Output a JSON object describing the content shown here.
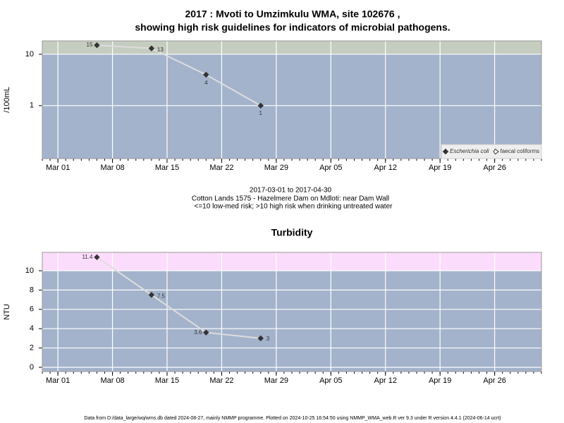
{
  "title": [
    "2017 : Mvoti to Umzimkulu WMA, site 102676 ,",
    "showing high risk guidelines for indicators of microbial pathogens."
  ],
  "notes": [
    "2017-03-01 to 2017-04-30",
    "Cotton Lands 1575 - Hazelmere Dam on Mdloti: near Dam Wall",
    "<=10 low-med risk; >10 high risk when drinking untreated water"
  ],
  "footer": "Data from D:/data_large/wq/wms.db dated 2024-08-27, mainly NMMP programme. Plotted on 2024-10-25 16:54:50 using NMMP_WMA_web.R ver 9.3 under R version 4.4.1 (2024-06-14 ucrt)",
  "chart_data": [
    {
      "type": "line",
      "y_label": "/100mL",
      "log_scale": true,
      "x": [
        "2017-03-06",
        "2017-03-13",
        "2017-03-20",
        "2017-03-27"
      ],
      "series": [
        {
          "name": "Escherichia coli",
          "marker": "filled",
          "color": "#333333",
          "values": [
            15,
            13,
            4,
            1
          ]
        },
        {
          "name": "faecal coliforms",
          "marker": "open",
          "color": "#333333",
          "values": [
            null,
            null,
            null,
            null
          ]
        }
      ],
      "line_color": "#dddddd",
      "xlim": [
        "2017-02-27",
        "2017-05-02"
      ],
      "xticks": [
        {
          "value": "2017-03-01",
          "label": "Mar 01"
        },
        {
          "value": "2017-03-08",
          "label": "Mar 08"
        },
        {
          "value": "2017-03-15",
          "label": "Mar 15"
        },
        {
          "value": "2017-03-22",
          "label": "Mar 22"
        },
        {
          "value": "2017-03-29",
          "label": "Mar 29"
        },
        {
          "value": "2017-04-05",
          "label": "Apr 05"
        },
        {
          "value": "2017-04-12",
          "label": "Apr 12"
        },
        {
          "value": "2017-04-19",
          "label": "Apr 19"
        },
        {
          "value": "2017-04-26",
          "label": "Apr 26"
        }
      ],
      "ylim": [
        0.093,
        18.2
      ],
      "yticks": [
        1,
        10
      ],
      "grid": true,
      "guideline": 10,
      "band_color": "#c4cdbf",
      "plot_color": "#a3b3cb",
      "legend": "lower right"
    },
    {
      "type": "line",
      "title": "Turbidity",
      "y_label": "NTU",
      "log_scale": false,
      "x": [
        "2017-03-06",
        "2017-03-13",
        "2017-03-20",
        "2017-03-27"
      ],
      "values": [
        11.4,
        7.5,
        3.6,
        3
      ],
      "color": "#333333",
      "line_color": "#dddddd",
      "xlim": [
        "2017-02-27",
        "2017-05-02"
      ],
      "xticks": [
        {
          "value": "2017-03-01",
          "label": "Mar 01"
        },
        {
          "value": "2017-03-08",
          "label": "Mar 08"
        },
        {
          "value": "2017-03-15",
          "label": "Mar 15"
        },
        {
          "value": "2017-03-22",
          "label": "Mar 22"
        },
        {
          "value": "2017-03-29",
          "label": "Mar 29"
        },
        {
          "value": "2017-04-05",
          "label": "Apr 05"
        },
        {
          "value": "2017-04-12",
          "label": "Apr 12"
        },
        {
          "value": "2017-04-19",
          "label": "Apr 19"
        },
        {
          "value": "2017-04-26",
          "label": "Apr 26"
        }
      ],
      "ylim": [
        -0.44,
        11.9
      ],
      "yticks": [
        0,
        2,
        4,
        6,
        8,
        10
      ],
      "grid": true,
      "guideline": 10,
      "band_color": "#fcdcfc",
      "plot_color": "#a3b3cb"
    }
  ]
}
